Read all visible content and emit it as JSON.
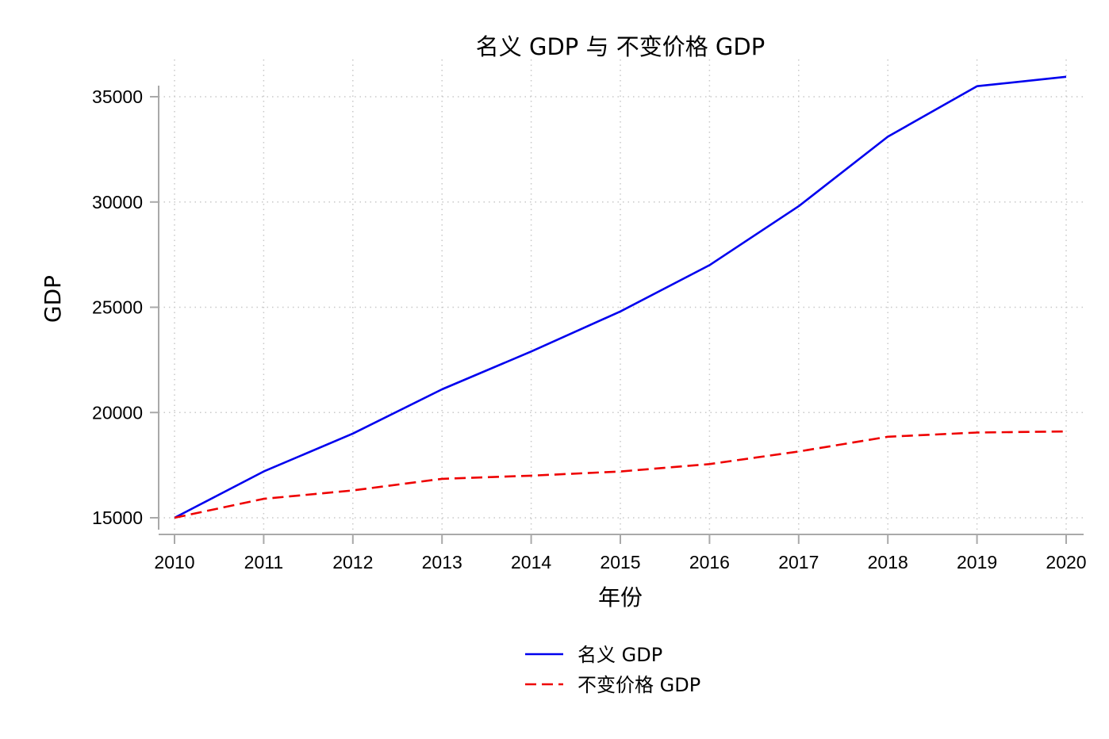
{
  "chart_data": {
    "type": "line",
    "title": "名义 GDP 与 不变价格 GDP",
    "xlabel": "年份",
    "ylabel": "GDP",
    "x": [
      2010,
      2011,
      2012,
      2013,
      2014,
      2015,
      2016,
      2017,
      2018,
      2019,
      2020
    ],
    "x_ticks": [
      "2010",
      "2011",
      "2012",
      "2013",
      "2014",
      "2015",
      "2016",
      "2017",
      "2018",
      "2019",
      "2020"
    ],
    "y_ticks": [
      "15000",
      "20000",
      "25000",
      "30000",
      "35000"
    ],
    "xlim": [
      2010,
      2020
    ],
    "ylim": [
      15000,
      35000
    ],
    "grid": true,
    "legend_position": "bottom",
    "series": [
      {
        "name": "名义 GDP",
        "color": "#0000ee",
        "style": "solid",
        "values": [
          15000,
          17200,
          19000,
          21100,
          22900,
          24800,
          27000,
          29800,
          33100,
          35500,
          35950
        ]
      },
      {
        "name": "不变价格 GDP",
        "color": "#ee0000",
        "style": "dashed",
        "values": [
          15000,
          15900,
          16300,
          16850,
          17000,
          17200,
          17550,
          18150,
          18850,
          19050,
          19100
        ]
      }
    ]
  }
}
